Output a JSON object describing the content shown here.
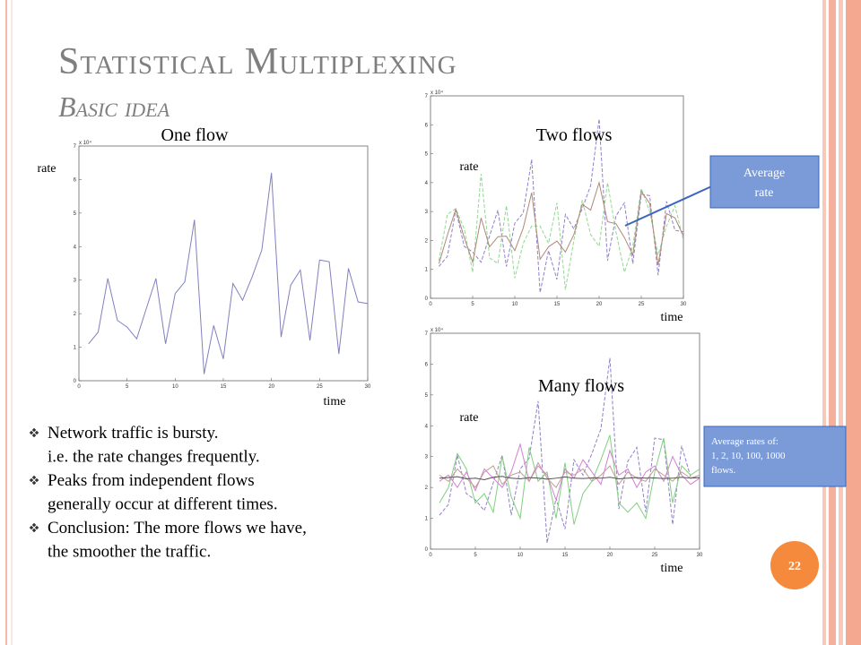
{
  "title": "Statistical Multiplexing",
  "subtitle": "Basic idea",
  "page_number": "22",
  "bullets": [
    [
      "Network traffic is bursty.",
      "i.e. the rate changes frequently."
    ],
    [
      "Peaks from independent flows",
      "generally occur at different times."
    ],
    [
      "Conclusion: The more flows we have,",
      "the smoother the traffic."
    ]
  ],
  "callouts": [
    [
      "Average",
      "rate"
    ],
    [
      "Average rates of:",
      "1, 2, 10, 100, 1000",
      "flows."
    ]
  ],
  "chart_data": [
    {
      "type": "line",
      "title": "One flow",
      "x_label": "time",
      "y_label": "rate",
      "y_multiplier": "x 10⁴",
      "x": [
        1,
        2,
        3,
        4,
        5,
        6,
        7,
        8,
        9,
        10,
        11,
        12,
        13,
        14,
        15,
        16,
        17,
        18,
        19,
        20,
        21,
        22,
        23,
        24,
        25,
        26,
        27,
        28,
        29,
        30
      ],
      "xlim": [
        0,
        30
      ],
      "xticks": [
        0,
        5,
        10,
        15,
        20,
        25,
        30
      ],
      "ylim": [
        0,
        7
      ],
      "yticks": [
        0,
        1,
        2,
        3,
        4,
        5,
        6,
        7
      ],
      "series": [
        {
          "color": "#8080c0",
          "dash": false,
          "values": [
            1.1,
            1.45,
            3.05,
            1.8,
            1.6,
            1.25,
            2.15,
            3.05,
            1.1,
            2.6,
            2.95,
            4.8,
            0.2,
            1.65,
            0.65,
            2.9,
            2.4,
            3.1,
            3.9,
            6.2,
            1.3,
            2.85,
            3.3,
            1.2,
            3.6,
            3.55,
            0.8,
            3.35,
            2.35,
            2.3
          ]
        }
      ]
    },
    {
      "type": "line",
      "title": "Two flows",
      "x_label": "time",
      "y_label": "rate",
      "y_multiplier": "x 10⁴",
      "x": [
        1,
        2,
        3,
        4,
        5,
        6,
        7,
        8,
        9,
        10,
        11,
        12,
        13,
        14,
        15,
        16,
        17,
        18,
        19,
        20,
        21,
        22,
        23,
        24,
        25,
        26,
        27,
        28,
        29,
        30
      ],
      "xlim": [
        0,
        30
      ],
      "xticks": [
        0,
        5,
        10,
        15,
        20,
        25,
        30
      ],
      "ylim": [
        0,
        7
      ],
      "yticks": [
        0,
        1,
        2,
        3,
        4,
        5,
        6,
        7
      ],
      "series": [
        {
          "color": "#9080c8",
          "dash": true,
          "values": [
            1.1,
            1.45,
            3.05,
            1.8,
            1.6,
            1.25,
            2.15,
            3.05,
            1.1,
            2.6,
            2.95,
            4.8,
            0.2,
            1.65,
            0.65,
            2.9,
            2.4,
            3.1,
            3.9,
            6.2,
            1.3,
            2.85,
            3.3,
            1.2,
            3.6,
            3.55,
            0.8,
            3.35,
            2.35,
            2.3
          ]
        },
        {
          "color": "#90d890",
          "dash": true,
          "values": [
            1.3,
            2.9,
            3.1,
            2.4,
            0.9,
            4.3,
            1.4,
            1.2,
            3.2,
            0.7,
            1.9,
            2.5,
            2.5,
            1.9,
            3.3,
            0.3,
            2.0,
            3.4,
            2.2,
            1.8,
            4.0,
            2.3,
            0.9,
            1.8,
            3.8,
            3.0,
            1.5,
            2.5,
            3.2,
            2.0
          ]
        },
        {
          "color": "#b08878",
          "dash": false,
          "values": [
            1.2,
            2.18,
            3.08,
            2.1,
            1.25,
            2.78,
            1.78,
            2.13,
            2.15,
            1.65,
            2.43,
            3.65,
            1.35,
            1.78,
            1.98,
            1.6,
            2.2,
            3.25,
            3.05,
            4.0,
            2.65,
            2.58,
            2.1,
            1.5,
            3.7,
            3.28,
            1.15,
            2.93,
            2.78,
            2.15
          ]
        }
      ]
    },
    {
      "type": "line",
      "title": "Many flows",
      "x_label": "time",
      "y_label": "rate",
      "y_multiplier": "x 10⁴",
      "x": [
        1,
        2,
        3,
        4,
        5,
        6,
        7,
        8,
        9,
        10,
        11,
        12,
        13,
        14,
        15,
        16,
        17,
        18,
        19,
        20,
        21,
        22,
        23,
        24,
        25,
        26,
        27,
        28,
        29,
        30
      ],
      "xlim": [
        0,
        30
      ],
      "xticks": [
        0,
        5,
        10,
        15,
        20,
        25,
        30
      ],
      "ylim": [
        0,
        7
      ],
      "yticks": [
        0,
        1,
        2,
        3,
        4,
        5,
        6,
        7
      ],
      "series": [
        {
          "color": "#9080c8",
          "dash": true,
          "values": [
            1.1,
            1.45,
            3.05,
            1.8,
            1.6,
            1.25,
            2.15,
            3.05,
            1.1,
            2.6,
            2.95,
            4.8,
            0.2,
            1.65,
            0.65,
            2.9,
            2.4,
            3.1,
            3.9,
            6.2,
            1.3,
            2.85,
            3.3,
            1.2,
            3.6,
            3.55,
            0.8,
            3.35,
            2.35,
            2.3
          ]
        },
        {
          "color": "#80d080",
          "dash": false,
          "values": [
            1.5,
            2.0,
            3.1,
            2.6,
            1.5,
            1.8,
            1.2,
            3.0,
            1.7,
            1.0,
            3.3,
            2.2,
            2.5,
            1.0,
            2.8,
            0.8,
            1.8,
            2.2,
            2.9,
            3.7,
            1.5,
            1.2,
            1.5,
            1.0,
            2.5,
            3.6,
            1.5,
            2.7,
            2.4,
            2.6
          ]
        },
        {
          "color": "#d080d0",
          "dash": false,
          "values": [
            2.2,
            2.4,
            2.0,
            2.5,
            1.9,
            2.6,
            2.3,
            2.0,
            2.5,
            3.4,
            2.2,
            2.7,
            2.4,
            1.6,
            2.6,
            2.3,
            2.9,
            2.5,
            2.1,
            3.2,
            2.4,
            2.6,
            2.0,
            2.5,
            2.7,
            2.2,
            3.0,
            2.4,
            2.1,
            2.3
          ]
        },
        {
          "color": "#c0a090",
          "dash": false,
          "values": [
            2.4,
            2.2,
            2.6,
            2.3,
            2.0,
            2.5,
            2.7,
            2.1,
            2.4,
            2.5,
            2.2,
            2.8,
            2.3,
            2.0,
            2.5,
            2.4,
            2.6,
            2.2,
            2.4,
            2.7,
            2.1,
            2.5,
            2.3,
            2.2,
            2.6,
            2.4,
            2.2,
            2.5,
            2.3,
            2.4
          ]
        },
        {
          "color": "#505050",
          "dash": false,
          "values": [
            2.3,
            2.32,
            2.35,
            2.28,
            2.3,
            2.25,
            2.33,
            2.36,
            2.3,
            2.28,
            2.32,
            2.3,
            2.27,
            2.3,
            2.34,
            2.3,
            2.29,
            2.31,
            2.3,
            2.33,
            2.28,
            2.3,
            2.32,
            2.3,
            2.31,
            2.29,
            2.3,
            2.33,
            2.3,
            2.32
          ]
        }
      ]
    }
  ]
}
